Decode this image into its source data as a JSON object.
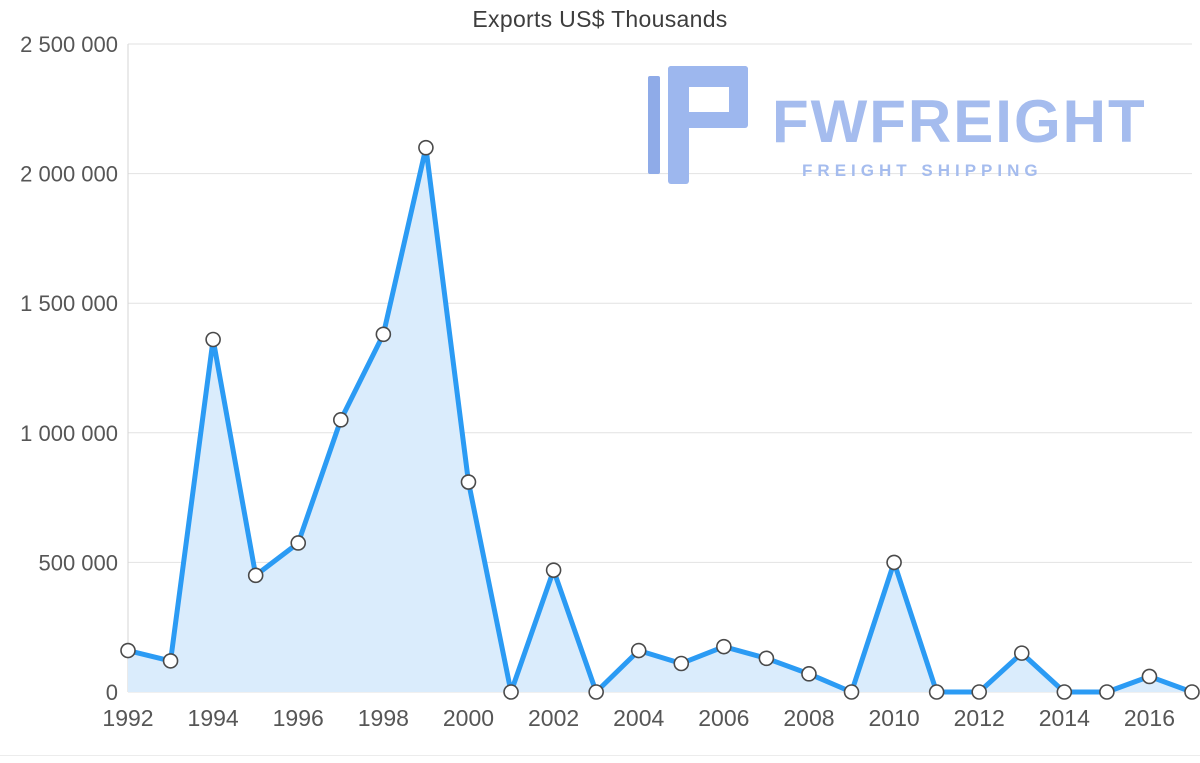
{
  "title": "Exports US$ Thousands",
  "watermark": {
    "brand": "FWFREIGHT",
    "tagline": "FREIGHT SHIPPING",
    "color": "#a5bcee"
  },
  "chart_data": {
    "type": "area",
    "title": "Exports US$ Thousands",
    "xlabel": "",
    "ylabel": "",
    "x": [
      1992,
      1993,
      1994,
      1995,
      1996,
      1997,
      1998,
      1999,
      2000,
      2001,
      2002,
      2003,
      2004,
      2005,
      2006,
      2007,
      2008,
      2009,
      2010,
      2011,
      2012,
      2013,
      2014,
      2015,
      2016,
      2017
    ],
    "values": [
      160000,
      120000,
      1360000,
      450000,
      575000,
      1050000,
      1380000,
      2100000,
      810000,
      0,
      470000,
      0,
      160000,
      110000,
      175000,
      130000,
      70000,
      0,
      500000,
      0,
      0,
      150000,
      0,
      0,
      60000,
      0
    ],
    "ylim": [
      0,
      2500000
    ],
    "ytick_step": 500000,
    "ytick_labels": [
      "0",
      "500 000",
      "1 000 000",
      "1 500 000",
      "2 000 000",
      "2 500 000"
    ],
    "xtick_labels": [
      "1992",
      "1994",
      "1996",
      "1998",
      "2000",
      "2002",
      "2004",
      "2006",
      "2008",
      "2010",
      "2012",
      "2014",
      "2016"
    ],
    "grid": "horizontal",
    "legend": "none",
    "line_color": "#2b9bf4",
    "area_fill_color": "#daecfc",
    "marker_fill": "#ffffff",
    "marker_stroke": "#4a4a4a",
    "axis_text_color": "#565656",
    "gridline_color": "#e2e2e2",
    "axis_line_color": "#d5d5d5",
    "title_color": "#3d3d3d"
  }
}
